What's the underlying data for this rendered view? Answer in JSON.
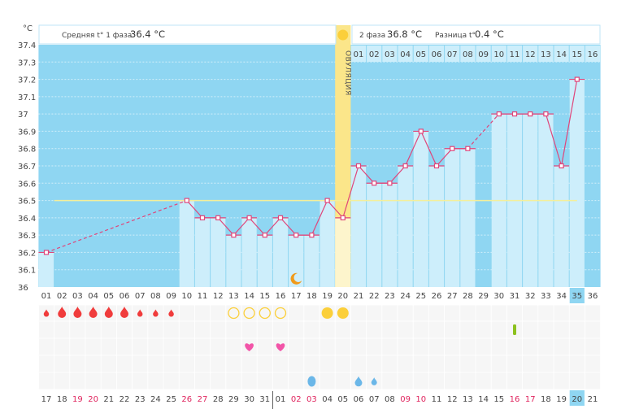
{
  "chart_data": {
    "type": "bar",
    "title": "",
    "y_unit": "°C",
    "ylim": [
      36.0,
      37.4
    ],
    "y_ticks": [
      "36",
      "36.1",
      "36.2",
      "36.3",
      "36.4",
      "36.5",
      "36.6",
      "36.7",
      "36.8",
      "36.9",
      "37",
      "37.1",
      "37.2",
      "37.3",
      "37.4"
    ],
    "cycle_days": [
      "01",
      "02",
      "03",
      "04",
      "05",
      "06",
      "07",
      "08",
      "09",
      "10",
      "11",
      "12",
      "13",
      "14",
      "15",
      "16",
      "17",
      "18",
      "19",
      "20",
      "21",
      "22",
      "23",
      "24",
      "25",
      "26",
      "27",
      "28",
      "29",
      "30",
      "31",
      "32",
      "33",
      "34",
      "35",
      "36"
    ],
    "temperatures": [
      36.2,
      null,
      null,
      null,
      null,
      null,
      null,
      null,
      null,
      36.5,
      36.4,
      36.4,
      36.3,
      36.4,
      36.3,
      36.4,
      36.3,
      36.3,
      36.5,
      36.4,
      36.7,
      36.6,
      36.6,
      36.7,
      36.9,
      36.7,
      36.8,
      36.8,
      null,
      37.0,
      37.0,
      37.0,
      37.0,
      36.7,
      37.2,
      null
    ],
    "coverline": 36.5,
    "ovulation_day": 20,
    "current_day": 35,
    "phase2_days": [
      "01",
      "02",
      "03",
      "04",
      "05",
      "06",
      "07",
      "08",
      "09",
      "10",
      "11",
      "12",
      "13",
      "14",
      "15",
      "16"
    ],
    "dates": [
      "17",
      "18",
      "19",
      "20",
      "21",
      "22",
      "23",
      "24",
      "25",
      "26",
      "27",
      "28",
      "29",
      "30",
      "31",
      "01",
      "02",
      "03",
      "04",
      "05",
      "06",
      "07",
      "08",
      "09",
      "10",
      "11",
      "12",
      "13",
      "14",
      "15",
      "16",
      "17",
      "18",
      "19",
      "20",
      "21"
    ],
    "weekend_date_indexes": [
      2,
      3,
      9,
      10,
      16,
      17,
      23,
      24,
      30,
      31
    ],
    "month_break_after_index": 14
  },
  "header": {
    "phase1_label": "Средняя t° 1 фаза",
    "phase1_value": "36.4 °C",
    "phase2_label": "2 фаза",
    "phase2_value": "36.8 °C",
    "diff_label": "Разница t°",
    "diff_value": "0.4 °C",
    "ovulation_label": "ОВУЛЯЦИЯ"
  },
  "symbols": {
    "bleeding_large": [
      2,
      3,
      4,
      5,
      6
    ],
    "bleeding_small": [
      1,
      7,
      8,
      9
    ],
    "circle_outline": [
      13,
      14,
      15,
      16
    ],
    "circle_filled": [
      19,
      20
    ],
    "test_mark": [
      31
    ],
    "hearts": [
      14,
      16
    ],
    "discharge": [
      18,
      21,
      22
    ],
    "moon": [
      17
    ]
  },
  "colors": {
    "bg_blue": "#8fd6f2",
    "bar_blue": "#cdeefb",
    "line": "#e0457a",
    "coverline": "#f4ef9a",
    "ovulation": "#fbe68a",
    "red": "#f03c3c",
    "yellow": "#fbcf3a",
    "heart": "#f255a8",
    "green": "#8cc11e",
    "drop_blue": "#6bb7e8"
  }
}
